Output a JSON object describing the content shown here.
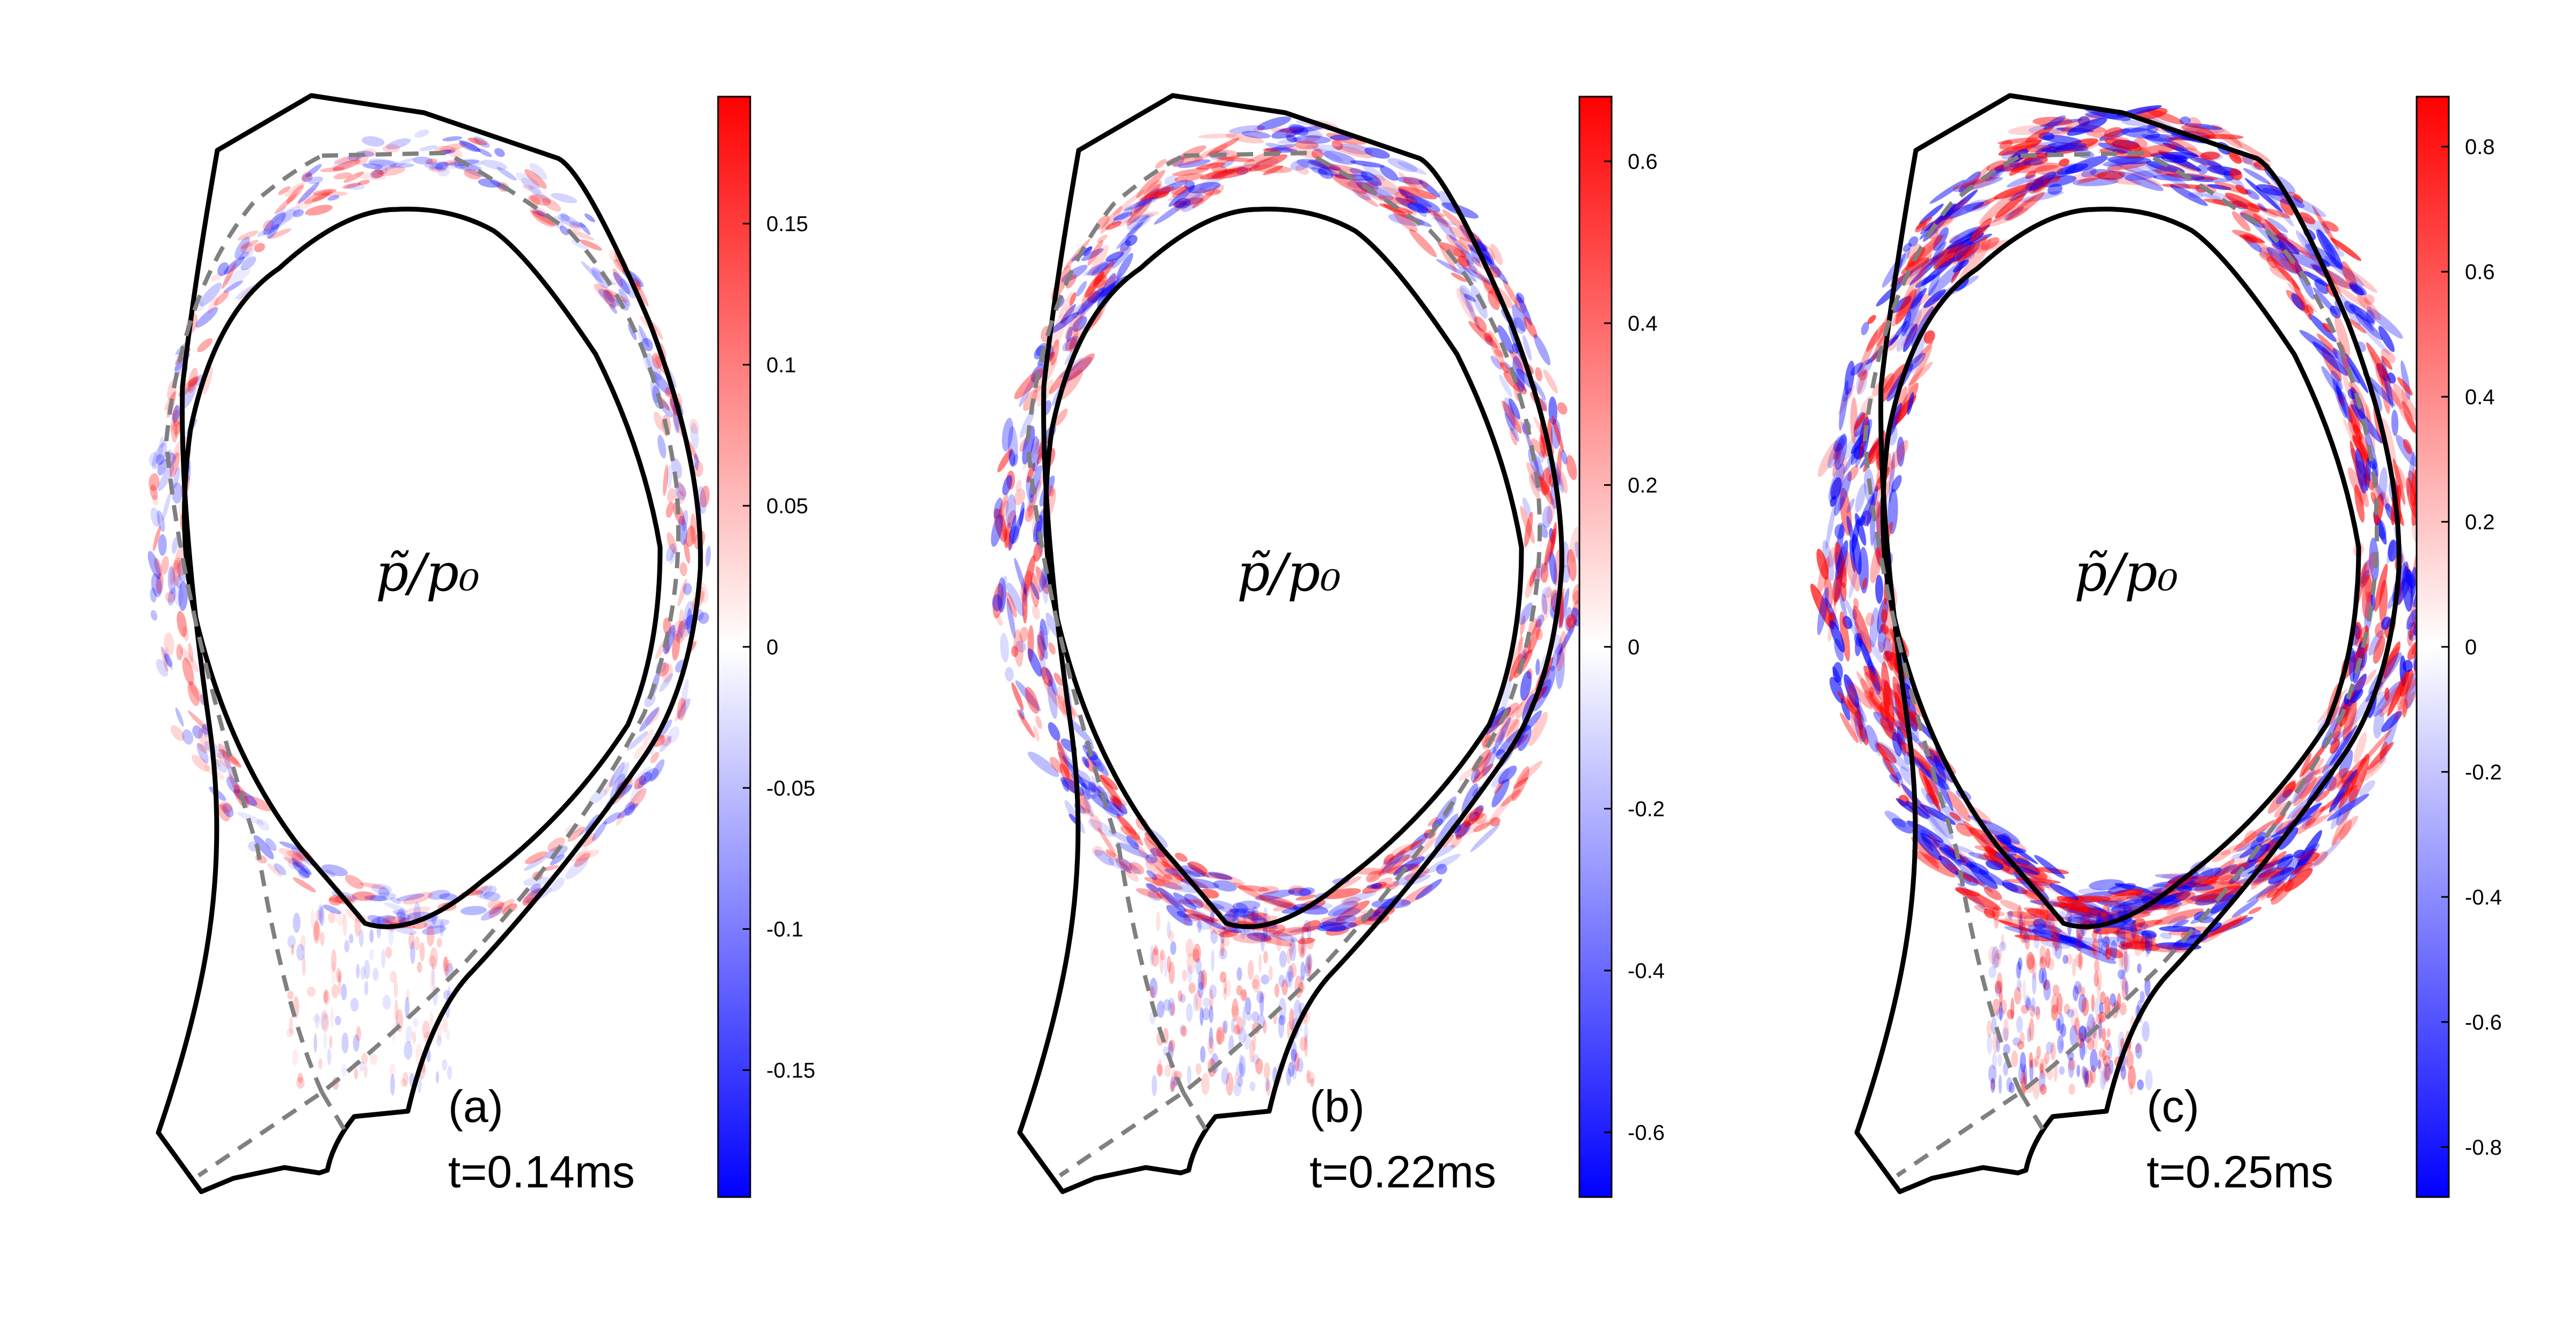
{
  "chart_data": [
    {
      "type": "heatmap",
      "panel_label": "(a)",
      "time_label": "t=0.14ms",
      "plot_label": "p̃/p₀",
      "colorbar": {
        "range": [
          -0.195,
          0.195
        ],
        "ticks": [
          0.15,
          0.1,
          0.05,
          0,
          -0.05,
          -0.1,
          -0.15
        ],
        "tick_labels": [
          "0.15",
          "0.1",
          "0.05",
          "0",
          "-0.05",
          "-0.1",
          "-0.15"
        ],
        "colormap": [
          "#0000ff",
          "#ffffff",
          "#ff0000"
        ]
      },
      "fluctuation_amplitude": 0.25
    },
    {
      "type": "heatmap",
      "panel_label": "(b)",
      "time_label": "t=0.22ms",
      "plot_label": "p̃/p₀",
      "colorbar": {
        "range": [
          -0.68,
          0.68
        ],
        "ticks": [
          0.6,
          0.4,
          0.2,
          0,
          -0.2,
          -0.4,
          -0.6
        ],
        "tick_labels": [
          "0.6",
          "0.4",
          "0.2",
          "0",
          "-0.2",
          "-0.4",
          "-0.6"
        ],
        "colormap": [
          "#0000ff",
          "#ffffff",
          "#ff0000"
        ]
      },
      "fluctuation_amplitude": 0.6
    },
    {
      "type": "heatmap",
      "panel_label": "(c)",
      "time_label": "t=0.25ms",
      "plot_label": "p̃/p₀",
      "colorbar": {
        "range": [
          -0.88,
          0.88
        ],
        "ticks": [
          0.8,
          0.6,
          0.4,
          0.2,
          0,
          -0.2,
          -0.4,
          -0.6,
          -0.8
        ],
        "tick_labels": [
          "0.8",
          "0.6",
          "0.4",
          "0.2",
          "0",
          "-0.2",
          "-0.4",
          "-0.6",
          "-0.8"
        ],
        "colormap": [
          "#0000ff",
          "#ffffff",
          "#ff0000"
        ]
      },
      "fluctuation_amplitude": 1.0
    }
  ],
  "colors": {
    "wall": "#000000",
    "separatrix": "#808080",
    "positive": "#ff0000",
    "negative": "#0000ff"
  }
}
